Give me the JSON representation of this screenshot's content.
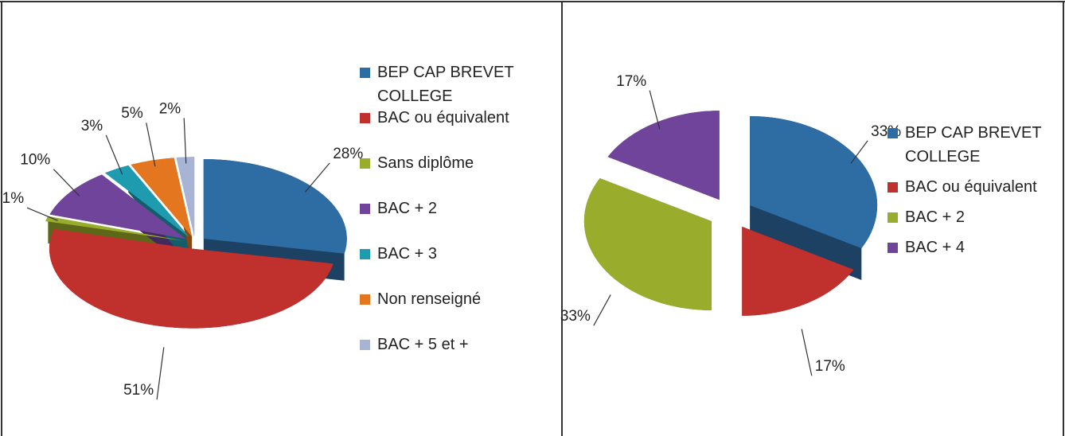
{
  "chart_data": [
    {
      "type": "pie",
      "categories": [
        "BEP CAP BREVET COLLEGE",
        "BAC ou équivalent",
        "Sans diplôme",
        "BAC + 2",
        "BAC + 3",
        "Non renseigné",
        "BAC + 5 et +"
      ],
      "values": [
        28,
        51,
        1,
        10,
        3,
        5,
        2
      ],
      "value_labels": [
        "28%",
        "51%",
        "1%",
        "10%",
        "3%",
        "5%",
        "2%"
      ],
      "colors": [
        "#2e6ca4",
        "#c0302c",
        "#9aac2c",
        "#70449a",
        "#1f9bb0",
        "#e3761e",
        "#a8b4d4"
      ]
    },
    {
      "type": "pie",
      "categories": [
        "BEP CAP BREVET COLLEGE",
        "BAC ou équivalent",
        "BAC + 2",
        "BAC + 4"
      ],
      "values": [
        33,
        17,
        33,
        17
      ],
      "value_labels": [
        "33%",
        "17%",
        "33%",
        "17%"
      ],
      "colors": [
        "#2e6ca4",
        "#c0302c",
        "#9aac2c",
        "#70449a"
      ]
    }
  ]
}
